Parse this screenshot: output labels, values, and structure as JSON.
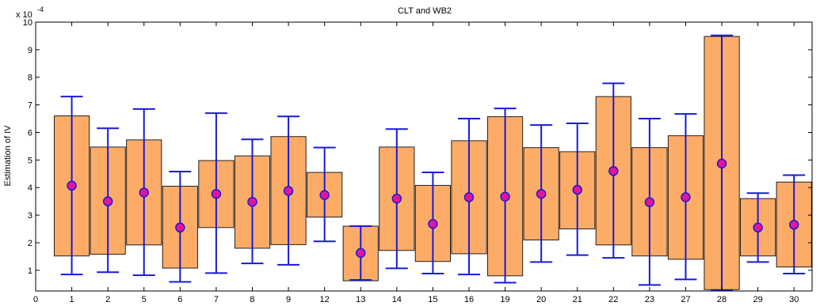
{
  "chart_data": {
    "type": "box",
    "title": "CLT and WB2",
    "ylabel": "Estimation of IV",
    "xlabel": "",
    "y_scale_label": "x 10",
    "y_scale_exponent": "-4",
    "ylim": [
      0.25,
      10
    ],
    "y_ticks": [
      1,
      2,
      3,
      4,
      5,
      6,
      7,
      8,
      9,
      10
    ],
    "x_origin_label": "0",
    "categories": [
      "1",
      "2",
      "5",
      "6",
      "7",
      "8",
      "9",
      "12",
      "13",
      "14",
      "15",
      "16",
      "19",
      "20",
      "21",
      "22",
      "23",
      "27",
      "28",
      "29",
      "30"
    ],
    "box_low": [
      1.52,
      1.58,
      1.92,
      1.08,
      2.55,
      1.8,
      1.93,
      2.93,
      0.62,
      1.72,
      1.32,
      1.6,
      0.8,
      2.1,
      2.5,
      1.92,
      1.52,
      1.4,
      0.3,
      1.52,
      1.12
    ],
    "box_high": [
      6.6,
      5.47,
      5.73,
      4.05,
      4.98,
      5.15,
      5.85,
      4.55,
      2.6,
      5.47,
      4.08,
      5.7,
      6.57,
      5.45,
      5.3,
      7.3,
      5.45,
      5.88,
      9.48,
      3.6,
      4.2
    ],
    "whisker_low": [
      0.85,
      0.93,
      0.82,
      0.58,
      0.9,
      1.25,
      1.2,
      2.05,
      0.65,
      1.07,
      0.88,
      0.85,
      0.55,
      1.3,
      1.55,
      1.45,
      0.47,
      0.67,
      0.27,
      1.3,
      0.88
    ],
    "whisker_high": [
      7.3,
      6.15,
      6.85,
      4.58,
      6.7,
      5.75,
      6.58,
      5.45,
      2.6,
      6.12,
      4.55,
      6.5,
      6.87,
      6.27,
      6.33,
      7.78,
      6.5,
      6.67,
      9.52,
      3.8,
      4.45
    ],
    "center": [
      4.07,
      3.5,
      3.82,
      2.55,
      3.77,
      3.48,
      3.88,
      3.73,
      1.63,
      3.6,
      2.68,
      3.65,
      3.67,
      3.77,
      3.92,
      4.6,
      3.47,
      3.65,
      4.87,
      2.55,
      2.65
    ],
    "grid": false,
    "colors": {
      "box_fill": "#fdac68",
      "box_stroke": "#202020",
      "whisker": "#1a1ad6",
      "marker_fill": "#e0159e",
      "marker_stroke": "#1a1ad6",
      "axis": "#000000"
    }
  }
}
